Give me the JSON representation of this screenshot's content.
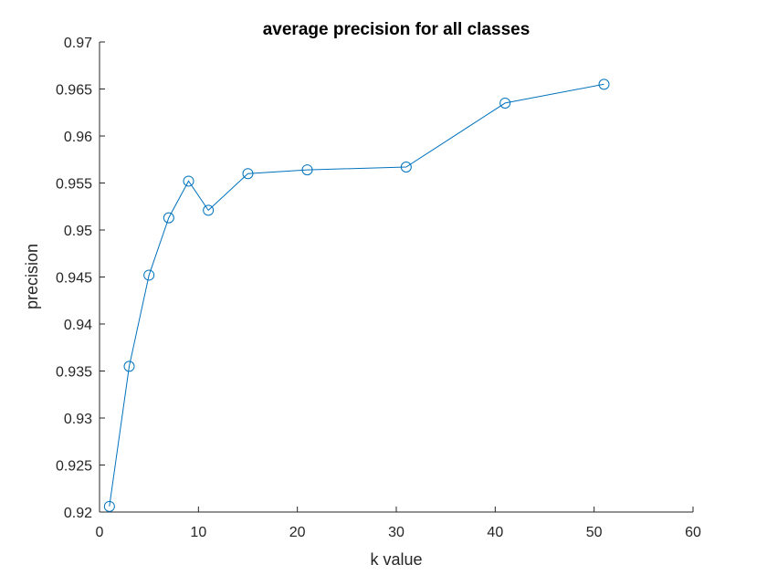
{
  "chart_data": {
    "type": "line",
    "title": "average precision for all classes",
    "xlabel": "k value",
    "ylabel": "precision",
    "xlim": [
      0,
      60
    ],
    "ylim": [
      0.92,
      0.97
    ],
    "xticks": [
      0,
      10,
      20,
      30,
      40,
      50,
      60
    ],
    "xtick_labels": [
      "0",
      "10",
      "20",
      "30",
      "40",
      "50",
      "60"
    ],
    "yticks": [
      0.92,
      0.925,
      0.93,
      0.935,
      0.94,
      0.945,
      0.95,
      0.955,
      0.96,
      0.965,
      0.97
    ],
    "ytick_labels": [
      "0.92",
      "0.925",
      "0.93",
      "0.935",
      "0.94",
      "0.945",
      "0.95",
      "0.955",
      "0.96",
      "0.965",
      "0.97"
    ],
    "grid": false,
    "line_color": "#0072BD",
    "marker": "circle",
    "series": [
      {
        "x": [
          1,
          3,
          5,
          7,
          9,
          11,
          15,
          21,
          31,
          41,
          51
        ],
        "y": [
          0.9206,
          0.9355,
          0.9452,
          0.9513,
          0.9552,
          0.9521,
          0.956,
          0.9564,
          0.9567,
          0.9635,
          0.9655
        ]
      }
    ]
  }
}
